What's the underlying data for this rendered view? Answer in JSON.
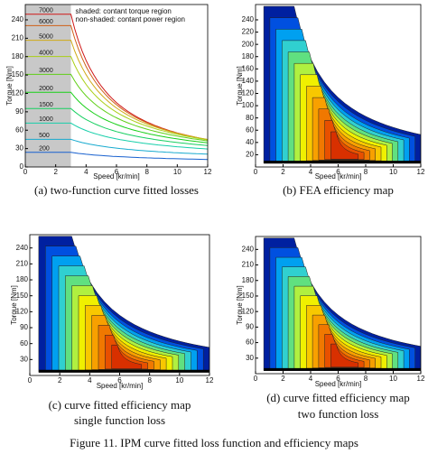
{
  "figure_caption": "Figure 11. IPM curve fitted loss function and efficiency maps",
  "panels": [
    {
      "caption": [
        "(a) two-function curve fitted losses"
      ],
      "xlabel": "Speed [kr/min]",
      "ylabel": "Torque [Nm]",
      "xlim": [
        0,
        12
      ],
      "ylim": [
        0,
        265
      ],
      "xticks": [
        0,
        2,
        4,
        6,
        8,
        10,
        12
      ],
      "yticks": [
        0,
        30,
        60,
        90,
        120,
        150,
        180,
        210,
        240
      ],
      "legend": [
        "shaded: contant torque region",
        "non-shaded: contant power region"
      ],
      "levels": [
        "7000",
        "6000",
        "5000",
        "4000",
        "3000",
        "2000",
        "1500",
        "1000",
        "500",
        "200"
      ]
    },
    {
      "caption": [
        "(b) FEA efficiency map"
      ],
      "xlabel": "Speed [kr/min]",
      "ylabel": "Torque [Nm]",
      "xlim": [
        0,
        12
      ],
      "ylim": [
        0,
        265
      ],
      "xticks": [
        0,
        2,
        4,
        6,
        8,
        10,
        12
      ],
      "yticks": [
        20,
        40,
        60,
        80,
        100,
        120,
        140,
        160,
        180,
        200,
        220,
        240
      ]
    },
    {
      "caption": [
        "(c) curve fitted efficiency map",
        "single function loss"
      ],
      "xlabel": "Speed [kr/min]",
      "ylabel": "Torque [Nm]",
      "xlim": [
        0,
        12
      ],
      "ylim": [
        0,
        265
      ],
      "xticks": [
        0,
        2,
        4,
        6,
        8,
        10,
        12
      ],
      "yticks": [
        30,
        60,
        90,
        120,
        150,
        180,
        210,
        240
      ]
    },
    {
      "caption": [
        "(d) curve fitted efficiency map",
        "two function loss"
      ],
      "xlabel": "Speed [kr/min]",
      "ylabel": "Torque [Nm]",
      "xlim": [
        0,
        12
      ],
      "ylim": [
        0,
        265
      ],
      "xticks": [
        0,
        2,
        4,
        6,
        8,
        10,
        12
      ],
      "yticks": [
        30,
        60,
        90,
        120,
        150,
        180,
        210,
        240
      ]
    }
  ]
}
